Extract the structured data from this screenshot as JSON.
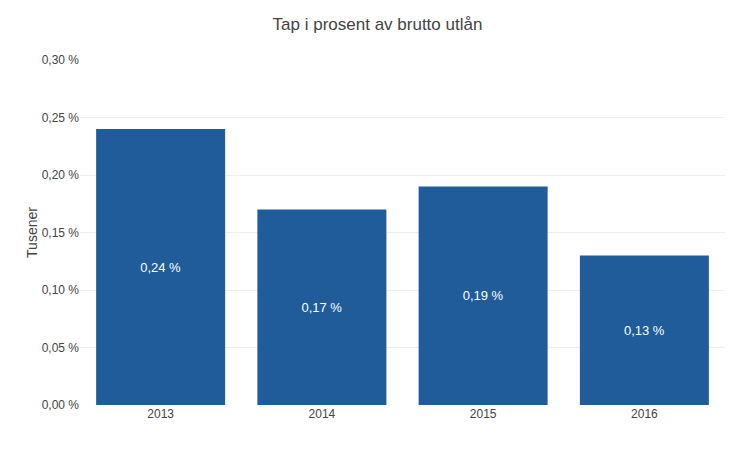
{
  "chart_data": {
    "type": "bar",
    "title": "Tap i prosent av brutto utlån",
    "ylabel": "Tusener",
    "categories": [
      "2013",
      "2014",
      "2015",
      "2016"
    ],
    "values": [
      0.0024,
      0.0017,
      0.0019,
      0.0013
    ],
    "value_labels": [
      "0,24 %",
      "0,17 %",
      "0,19 %",
      "0,13 %"
    ],
    "data_labels": true,
    "color": "#1F5C99",
    "ylim": [
      0,
      0.003
    ],
    "yticks": [
      {
        "value": 0.0,
        "label": "0,00 %"
      },
      {
        "value": 0.0005,
        "label": "0,05 %"
      },
      {
        "value": 0.001,
        "label": "0,10 %"
      },
      {
        "value": 0.0015,
        "label": "0,15 %"
      },
      {
        "value": 0.002,
        "label": "0,20 %"
      },
      {
        "value": 0.0025,
        "label": "0,25 %"
      },
      {
        "value": 0.003,
        "label": "0,30 %"
      }
    ],
    "grid": true
  }
}
